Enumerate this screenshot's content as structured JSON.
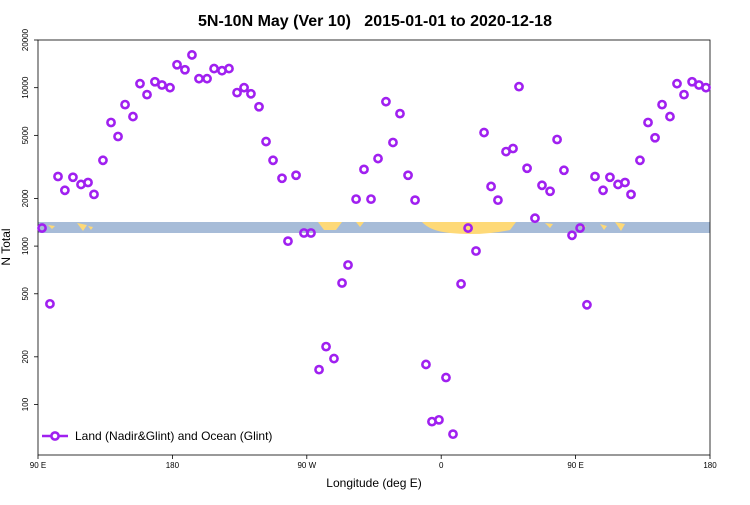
{
  "chart_data": {
    "type": "scatter",
    "title": "5N-10N May (Ver 10)   2015-01-01 to 2020-12-18",
    "x_label": "Longitude (deg E)",
    "y_label": "N Total",
    "log_y": true,
    "legend": "lower left",
    "xlim": [
      90,
      540
    ],
    "ylim": [
      48,
      20000
    ],
    "xticks": [
      {
        "value": 90,
        "label": "90 E"
      },
      180,
      {
        "value": 270,
        "label": "90 W"
      },
      {
        "value": 360,
        "label": "0"
      },
      {
        "value": 450,
        "label": "90 E"
      },
      {
        "value": 540,
        "label": "180"
      }
    ],
    "yticks": [
      100,
      200,
      500,
      1000,
      2000,
      5000,
      10000,
      20000
    ],
    "series": [
      {
        "name": "Land (Nadir&Glint) and Ocean (Glint)",
        "color": "#a020f0",
        "x": [
          92.7,
          98,
          103.4,
          108,
          113.4,
          118.8,
          123.5,
          127.5,
          133.5,
          138.9,
          143.6,
          148.3,
          153.6,
          158.3,
          163,
          168.3,
          173,
          178.4,
          183.1,
          188.4,
          193.1,
          197.8,
          203.2,
          207.9,
          213.2,
          217.9,
          223.3,
          228,
          232.6,
          238,
          242.7,
          247.4,
          253.4,
          257.4,
          262.8,
          268.1,
          272.8,
          278.2,
          282.9,
          288.2,
          293.6,
          297.6,
          303,
          308.3,
          313,
          317.7,
          323,
          327.7,
          332.4,
          337.8,
          342.5,
          349.8,
          353.8,
          358.5,
          363.2,
          367.9,
          373.3,
          378,
          383.3,
          388.7,
          393.4,
          398,
          403.4,
          408.1,
          412.1,
          417.5,
          422.8,
          427.5,
          432.9,
          437.6,
          442.2,
          447.6,
          453,
          457.6,
          463,
          468.4,
          473,
          478.4,
          483.1,
          487.1,
          493.1,
          498.5,
          503.2,
          507.9,
          513.2,
          517.9,
          522.6,
          528,
          532.6,
          537.3
        ],
        "values": [
          1300,
          432,
          2750,
          2250,
          2720,
          2450,
          2520,
          2120,
          3480,
          6030,
          4920,
          7820,
          6570,
          10600,
          9040,
          10900,
          10400,
          10000,
          13960,
          12980,
          16100,
          11400,
          11400,
          13200,
          12800,
          13200,
          9310,
          10000,
          9150,
          7580,
          4570,
          3480,
          2680,
          1075,
          2800,
          1210,
          1210,
          166,
          232,
          195,
          585,
          760,
          1980,
          3050,
          1980,
          3570,
          8160,
          4510,
          6860,
          2800,
          1950,
          179,
          78,
          80,
          148,
          65,
          577,
          1300,
          931,
          5210,
          2380,
          1950,
          3950,
          4130,
          10150,
          3100,
          1500,
          2420,
          2220,
          4710,
          3010,
          1170,
          1300,
          426,
          2750,
          2250,
          2720,
          2450,
          2520,
          2120,
          3480,
          6030,
          4830,
          7820,
          6570,
          10600,
          9040,
          10900,
          10400,
          10000
        ]
      }
    ]
  }
}
